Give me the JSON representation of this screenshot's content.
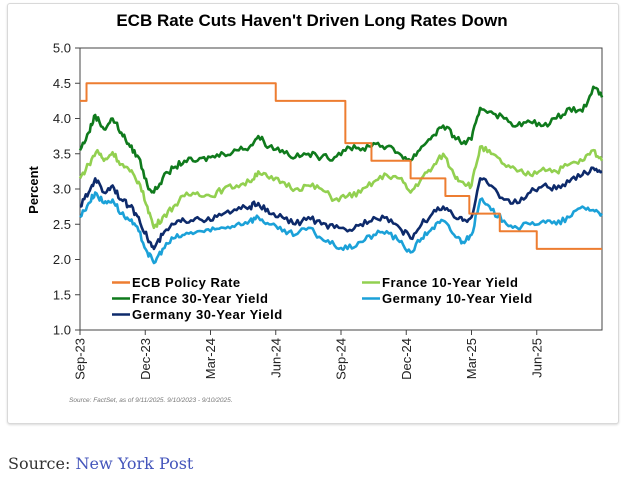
{
  "chart_data": {
    "type": "line",
    "title": "ECB Rate Cuts Haven't Driven Long Rates Down",
    "xlabel": "",
    "ylabel": "Percent",
    "ylim": [
      1.0,
      5.0
    ],
    "yticks": [
      "1.0",
      "1.5",
      "2.0",
      "2.5",
      "3.0",
      "3.5",
      "4.0",
      "4.5",
      "5.0"
    ],
    "x_unit": "months since 2023-09-10",
    "xlim": [
      0,
      24
    ],
    "xticks": [
      {
        "x": 0,
        "label": "Sep-23"
      },
      {
        "x": 3,
        "label": "Dec-23"
      },
      {
        "x": 6,
        "label": "Mar-24"
      },
      {
        "x": 9,
        "label": "Jun-24"
      },
      {
        "x": 12,
        "label": "Sep-24"
      },
      {
        "x": 15,
        "label": "Dec-24"
      },
      {
        "x": 18,
        "label": "Mar-25"
      },
      {
        "x": 21,
        "label": "Jun-25"
      }
    ],
    "legend_position": "bottom-inside",
    "note": "Source: FactSet, as of 9/11/2025. 9/10/2023 - 9/10/2025.",
    "series": [
      {
        "name": "ECB Policy Rate",
        "color": "#ed7d31",
        "step": true,
        "x": [
          0,
          0.3,
          9.0,
          12.2,
          13.4,
          15.2,
          16.8,
          17.9,
          19.3,
          21.0,
          24
        ],
        "y": [
          4.25,
          4.5,
          4.25,
          3.65,
          3.4,
          3.15,
          2.9,
          2.65,
          2.4,
          2.15,
          2.15
        ]
      },
      {
        "name": "France 10-Year Yield",
        "color": "#92d050",
        "x": [
          0,
          0.4,
          0.8,
          1.1,
          1.5,
          1.9,
          2.3,
          2.7,
          3.1,
          3.4,
          3.8,
          4.3,
          4.8,
          5.4,
          6.0,
          6.6,
          7.2,
          7.8,
          8.2,
          8.7,
          9.3,
          9.9,
          10.5,
          11.1,
          11.7,
          12.3,
          12.9,
          13.5,
          14.1,
          14.7,
          15.2,
          15.7,
          16.2,
          16.7,
          17.2,
          17.6,
          18.0,
          18.4,
          18.9,
          19.5,
          20.1,
          20.7,
          21.3,
          21.9,
          22.5,
          23.1,
          23.6,
          24
        ],
        "y": [
          3.15,
          3.35,
          3.55,
          3.4,
          3.52,
          3.35,
          3.25,
          3.1,
          2.75,
          2.45,
          2.6,
          2.75,
          2.9,
          2.95,
          2.9,
          3.0,
          3.05,
          3.1,
          3.25,
          3.15,
          3.1,
          3.0,
          3.05,
          3.0,
          2.85,
          2.9,
          2.95,
          3.1,
          3.2,
          3.15,
          2.95,
          3.15,
          3.3,
          3.5,
          3.2,
          3.1,
          3.05,
          3.6,
          3.5,
          3.35,
          3.25,
          3.2,
          3.3,
          3.25,
          3.35,
          3.4,
          3.55,
          3.4
        ]
      },
      {
        "name": "France 30-Year Yield",
        "color": "#0f7a1c",
        "x": [
          0,
          0.4,
          0.7,
          1.1,
          1.5,
          1.9,
          2.3,
          2.7,
          3.1,
          3.4,
          3.8,
          4.3,
          4.8,
          5.4,
          6.0,
          6.6,
          7.2,
          7.8,
          8.2,
          8.7,
          9.3,
          9.9,
          10.5,
          11.1,
          11.7,
          12.3,
          12.9,
          13.5,
          14.1,
          14.7,
          15.2,
          15.7,
          16.2,
          16.7,
          17.2,
          17.6,
          18.0,
          18.4,
          18.9,
          19.5,
          20.1,
          20.7,
          21.3,
          21.9,
          22.5,
          23.1,
          23.6,
          24
        ],
        "y": [
          3.55,
          3.8,
          4.05,
          3.85,
          4.0,
          3.8,
          3.6,
          3.45,
          3.05,
          2.95,
          3.15,
          3.3,
          3.4,
          3.4,
          3.45,
          3.5,
          3.55,
          3.6,
          3.75,
          3.6,
          3.55,
          3.45,
          3.5,
          3.45,
          3.45,
          3.6,
          3.55,
          3.65,
          3.6,
          3.5,
          3.4,
          3.6,
          3.75,
          3.9,
          3.75,
          3.65,
          3.7,
          4.15,
          4.1,
          4.0,
          3.9,
          3.95,
          3.9,
          4.0,
          4.15,
          4.1,
          4.45,
          4.3
        ]
      },
      {
        "name": "Germany 10-Year Yield",
        "color": "#1ba1d8",
        "x": [
          0,
          0.4,
          0.7,
          1.1,
          1.5,
          1.9,
          2.3,
          2.7,
          3.1,
          3.4,
          3.8,
          4.3,
          4.8,
          5.4,
          6.0,
          6.6,
          7.2,
          7.8,
          8.2,
          8.7,
          9.3,
          9.9,
          10.5,
          11.1,
          11.7,
          12.3,
          12.9,
          13.5,
          14.1,
          14.7,
          15.2,
          15.7,
          16.2,
          16.7,
          17.2,
          17.6,
          18.0,
          18.4,
          18.9,
          19.5,
          20.1,
          20.7,
          21.3,
          21.9,
          22.5,
          23.1,
          23.6,
          24
        ],
        "y": [
          2.6,
          2.8,
          2.95,
          2.8,
          2.85,
          2.65,
          2.55,
          2.4,
          2.1,
          1.95,
          2.15,
          2.3,
          2.35,
          2.4,
          2.4,
          2.45,
          2.5,
          2.55,
          2.6,
          2.5,
          2.4,
          2.35,
          2.45,
          2.3,
          2.2,
          2.15,
          2.25,
          2.35,
          2.4,
          2.25,
          2.1,
          2.3,
          2.45,
          2.55,
          2.35,
          2.25,
          2.35,
          2.85,
          2.7,
          2.55,
          2.45,
          2.5,
          2.55,
          2.5,
          2.6,
          2.75,
          2.7,
          2.65
        ]
      },
      {
        "name": "Germany 30-Year Yield",
        "color": "#0d2a6b",
        "x": [
          0,
          0.4,
          0.7,
          1.1,
          1.5,
          1.9,
          2.3,
          2.7,
          3.1,
          3.4,
          3.8,
          4.3,
          4.8,
          5.4,
          6.0,
          6.6,
          7.2,
          7.8,
          8.2,
          8.7,
          9.3,
          9.9,
          10.5,
          11.1,
          11.7,
          12.3,
          12.9,
          13.5,
          14.1,
          14.7,
          15.2,
          15.7,
          16.2,
          16.7,
          17.2,
          17.6,
          18.0,
          18.4,
          18.9,
          19.5,
          20.1,
          20.7,
          21.3,
          21.9,
          22.5,
          23.1,
          23.6,
          24
        ],
        "y": [
          2.75,
          2.95,
          3.15,
          2.95,
          3.05,
          2.85,
          2.75,
          2.6,
          2.3,
          2.15,
          2.35,
          2.5,
          2.55,
          2.6,
          2.55,
          2.65,
          2.7,
          2.75,
          2.8,
          2.65,
          2.6,
          2.5,
          2.6,
          2.5,
          2.45,
          2.4,
          2.5,
          2.6,
          2.6,
          2.45,
          2.3,
          2.5,
          2.65,
          2.75,
          2.6,
          2.55,
          2.6,
          3.15,
          3.05,
          2.85,
          2.8,
          2.95,
          3.05,
          3.0,
          3.1,
          3.2,
          3.3,
          3.25
        ]
      }
    ],
    "legend": [
      {
        "label": "ECB Policy Rate",
        "color": "#ed7d31"
      },
      {
        "label": "France 10-Year Yield",
        "color": "#92d050"
      },
      {
        "label": "France 30-Year Yield",
        "color": "#0f7a1c"
      },
      {
        "label": "Germany 10-Year Yield",
        "color": "#1ba1d8"
      },
      {
        "label": "Germany 30-Year Yield",
        "color": "#0d2a6b"
      }
    ]
  },
  "footer": {
    "prefix": "Source:",
    "link_text": "New York Post"
  }
}
